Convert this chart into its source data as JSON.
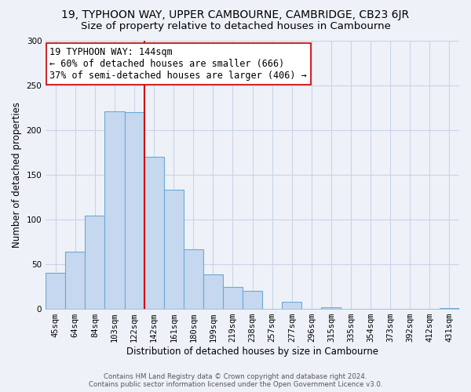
{
  "title": "19, TYPHOON WAY, UPPER CAMBOURNE, CAMBRIDGE, CB23 6JR",
  "subtitle": "Size of property relative to detached houses in Cambourne",
  "xlabel": "Distribution of detached houses by size in Cambourne",
  "ylabel": "Number of detached properties",
  "bar_labels": [
    "45sqm",
    "64sqm",
    "84sqm",
    "103sqm",
    "122sqm",
    "142sqm",
    "161sqm",
    "180sqm",
    "199sqm",
    "219sqm",
    "238sqm",
    "257sqm",
    "277sqm",
    "296sqm",
    "315sqm",
    "335sqm",
    "354sqm",
    "373sqm",
    "392sqm",
    "412sqm",
    "431sqm"
  ],
  "bar_values": [
    40,
    64,
    104,
    221,
    220,
    170,
    133,
    67,
    39,
    25,
    20,
    0,
    8,
    0,
    2,
    0,
    0,
    0,
    0,
    0,
    1
  ],
  "bar_color": "#c5d8ef",
  "bar_edge_color": "#6aaad4",
  "vline_x_index": 4.5,
  "vline_color": "#cc0000",
  "ylim": [
    0,
    300
  ],
  "yticks": [
    0,
    50,
    100,
    150,
    200,
    250,
    300
  ],
  "annotation_text": "19 TYPHOON WAY: 144sqm\n← 60% of detached houses are smaller (666)\n37% of semi-detached houses are larger (406) →",
  "annotation_box_color": "#ffffff",
  "annotation_box_edge": "#cc0000",
  "footer_line1": "Contains HM Land Registry data © Crown copyright and database right 2024.",
  "footer_line2": "Contains public sector information licensed under the Open Government Licence v3.0.",
  "bg_color": "#eef2f8",
  "grid_color": "#c8d4e8",
  "title_fontsize": 10,
  "subtitle_fontsize": 9.5,
  "axis_label_fontsize": 8.5,
  "tick_fontsize": 7.5,
  "ann_fontsize": 8.5
}
